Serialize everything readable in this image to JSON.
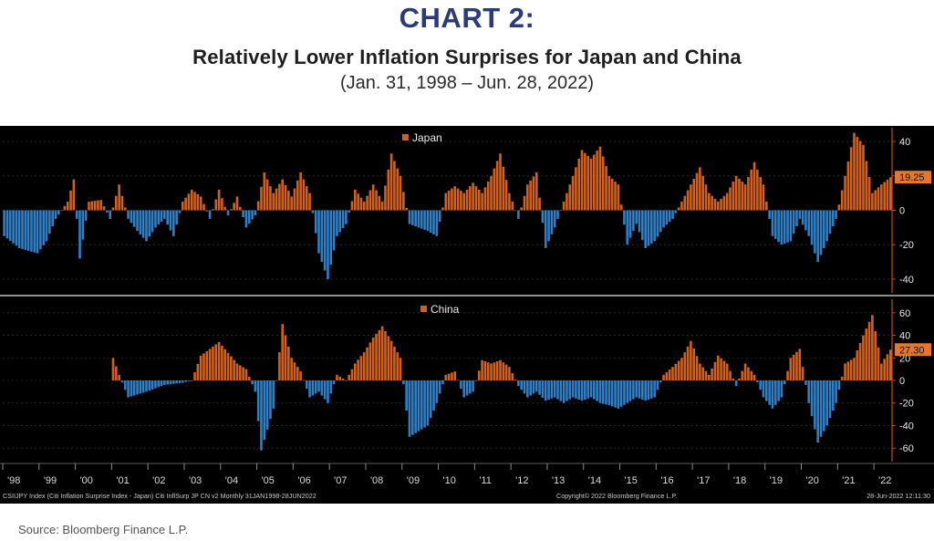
{
  "header": {
    "label": "CHART 2:",
    "title": "Relatively Lower Inflation Surprises for Japan and China",
    "subtitle": "(Jan. 31, 1998 – Jun. 28, 2022)"
  },
  "source": "Source: Bloomberg Finance L.P.",
  "footer": {
    "left": "CSIIJPY Index (Citi Inflation Surprise Index - Japan) Citi InflSurp JP CN v2  Monthly 31JAN1998-28JUN2022",
    "center": "Copyright© 2022 Bloomberg Finance L.P.",
    "right": "28-Jun-2022 12:11:30"
  },
  "colors": {
    "positive": "#d2601a",
    "negative": "#2f7fc6",
    "background": "#000000",
    "axis": "#d0461e",
    "last_value_tag": "#e8752a"
  },
  "chart_data": {
    "type": "bar",
    "x_range": [
      "1998-01",
      "2022-06"
    ],
    "x_tick_labels": [
      "'98",
      "'99",
      "'00",
      "'01",
      "'02",
      "'03",
      "'04",
      "'05",
      "'06",
      "'07",
      "'08",
      "'09",
      "'10",
      "'11",
      "'12",
      "'13",
      "'14",
      "'15",
      "'16",
      "'17",
      "'18",
      "'19",
      "'20",
      "'21",
      "'22"
    ],
    "panels": [
      {
        "series_name": "Japan",
        "ylim": [
          -48,
          48
        ],
        "yticks": [
          40,
          20,
          0,
          -20,
          -40
        ],
        "last_value": "19.25",
        "keypoints": [
          [
            "1998-01",
            -15
          ],
          [
            "1998-06",
            -22
          ],
          [
            "1998-12",
            -25
          ],
          [
            "1999-03",
            -18
          ],
          [
            "1999-06",
            -5
          ],
          [
            "1999-10",
            5
          ],
          [
            "1999-12",
            18
          ],
          [
            "2000-02",
            -28
          ],
          [
            "2000-05",
            5
          ],
          [
            "2000-09",
            6
          ],
          [
            "2000-12",
            -5
          ],
          [
            "2001-03",
            15
          ],
          [
            "2001-06",
            -5
          ],
          [
            "2001-09",
            -12
          ],
          [
            "2001-12",
            -18
          ],
          [
            "2002-03",
            -10
          ],
          [
            "2002-06",
            -5
          ],
          [
            "2002-09",
            -15
          ],
          [
            "2002-12",
            5
          ],
          [
            "2003-03",
            12
          ],
          [
            "2003-06",
            8
          ],
          [
            "2003-09",
            -5
          ],
          [
            "2003-12",
            12
          ],
          [
            "2004-03",
            -3
          ],
          [
            "2004-06",
            8
          ],
          [
            "2004-09",
            -10
          ],
          [
            "2004-12",
            -3
          ],
          [
            "2005-03",
            22
          ],
          [
            "2005-06",
            10
          ],
          [
            "2005-09",
            18
          ],
          [
            "2005-12",
            8
          ],
          [
            "2006-03",
            22
          ],
          [
            "2006-06",
            10
          ],
          [
            "2006-09",
            -25
          ],
          [
            "2006-12",
            -40
          ],
          [
            "2007-03",
            -15
          ],
          [
            "2007-06",
            -8
          ],
          [
            "2007-09",
            12
          ],
          [
            "2007-12",
            5
          ],
          [
            "2008-03",
            15
          ],
          [
            "2008-06",
            5
          ],
          [
            "2008-09",
            33
          ],
          [
            "2008-12",
            20
          ],
          [
            "2009-03",
            -8
          ],
          [
            "2009-06",
            -10
          ],
          [
            "2009-09",
            -12
          ],
          [
            "2009-12",
            -15
          ],
          [
            "2010-03",
            10
          ],
          [
            "2010-06",
            14
          ],
          [
            "2010-09",
            10
          ],
          [
            "2010-12",
            16
          ],
          [
            "2011-03",
            10
          ],
          [
            "2011-06",
            20
          ],
          [
            "2011-09",
            33
          ],
          [
            "2011-12",
            10
          ],
          [
            "2012-03",
            -5
          ],
          [
            "2012-06",
            15
          ],
          [
            "2012-09",
            22
          ],
          [
            "2012-12",
            -22
          ],
          [
            "2013-03",
            -10
          ],
          [
            "2013-06",
            5
          ],
          [
            "2013-09",
            20
          ],
          [
            "2013-12",
            35
          ],
          [
            "2014-03",
            30
          ],
          [
            "2014-06",
            37
          ],
          [
            "2014-09",
            20
          ],
          [
            "2014-12",
            15
          ],
          [
            "2015-03",
            -20
          ],
          [
            "2015-06",
            -8
          ],
          [
            "2015-09",
            -22
          ],
          [
            "2015-12",
            -18
          ],
          [
            "2016-03",
            -10
          ],
          [
            "2016-06",
            -5
          ],
          [
            "2016-09",
            5
          ],
          [
            "2016-12",
            15
          ],
          [
            "2017-03",
            25
          ],
          [
            "2017-06",
            10
          ],
          [
            "2017-09",
            5
          ],
          [
            "2017-12",
            10
          ],
          [
            "2018-03",
            20
          ],
          [
            "2018-06",
            15
          ],
          [
            "2018-09",
            28
          ],
          [
            "2018-12",
            15
          ],
          [
            "2019-03",
            -15
          ],
          [
            "2019-06",
            -20
          ],
          [
            "2019-09",
            -18
          ],
          [
            "2019-12",
            -5
          ],
          [
            "2020-03",
            -15
          ],
          [
            "2020-06",
            -30
          ],
          [
            "2020-09",
            -18
          ],
          [
            "2020-12",
            -5
          ],
          [
            "2021-03",
            20
          ],
          [
            "2021-06",
            45
          ],
          [
            "2021-09",
            38
          ],
          [
            "2021-12",
            10
          ],
          [
            "2022-03",
            15
          ],
          [
            "2022-06",
            19.25
          ]
        ]
      },
      {
        "series_name": "China",
        "ylim": [
          -72,
          72
        ],
        "yticks": [
          60,
          40,
          20,
          0,
          -20,
          -40,
          -60
        ],
        "last_value": "27.30",
        "keypoints": [
          [
            "2001-01",
            20
          ],
          [
            "2001-03",
            5
          ],
          [
            "2001-06",
            -15
          ],
          [
            "2001-12",
            -10
          ],
          [
            "2002-06",
            -4
          ],
          [
            "2002-12",
            -2
          ],
          [
            "2003-03",
            0
          ],
          [
            "2003-06",
            22
          ],
          [
            "2003-12",
            34
          ],
          [
            "2004-06",
            15
          ],
          [
            "2004-09",
            10
          ],
          [
            "2004-12",
            -10
          ],
          [
            "2005-02",
            -62
          ],
          [
            "2005-06",
            -25
          ],
          [
            "2005-09",
            50
          ],
          [
            "2005-12",
            20
          ],
          [
            "2006-03",
            8
          ],
          [
            "2006-06",
            -15
          ],
          [
            "2006-09",
            -10
          ],
          [
            "2006-12",
            -20
          ],
          [
            "2007-03",
            5
          ],
          [
            "2007-06",
            0
          ],
          [
            "2007-09",
            15
          ],
          [
            "2007-12",
            25
          ],
          [
            "2008-03",
            38
          ],
          [
            "2008-06",
            48
          ],
          [
            "2008-09",
            35
          ],
          [
            "2008-12",
            20
          ],
          [
            "2009-03",
            -50
          ],
          [
            "2009-06",
            -45
          ],
          [
            "2009-09",
            -40
          ],
          [
            "2009-12",
            -20
          ],
          [
            "2010-03",
            5
          ],
          [
            "2010-06",
            8
          ],
          [
            "2010-09",
            -15
          ],
          [
            "2010-12",
            -10
          ],
          [
            "2011-03",
            18
          ],
          [
            "2011-06",
            15
          ],
          [
            "2011-09",
            18
          ],
          [
            "2011-12",
            12
          ],
          [
            "2012-03",
            -5
          ],
          [
            "2012-06",
            -15
          ],
          [
            "2012-09",
            -10
          ],
          [
            "2012-12",
            -18
          ],
          [
            "2013-03",
            -15
          ],
          [
            "2013-06",
            -20
          ],
          [
            "2013-09",
            -15
          ],
          [
            "2013-12",
            -18
          ],
          [
            "2014-03",
            -15
          ],
          [
            "2014-06",
            -20
          ],
          [
            "2014-09",
            -22
          ],
          [
            "2014-12",
            -25
          ],
          [
            "2015-03",
            -20
          ],
          [
            "2015-06",
            -15
          ],
          [
            "2015-09",
            -18
          ],
          [
            "2015-12",
            -15
          ],
          [
            "2016-03",
            5
          ],
          [
            "2016-06",
            12
          ],
          [
            "2016-09",
            20
          ],
          [
            "2016-12",
            35
          ],
          [
            "2017-03",
            15
          ],
          [
            "2017-06",
            5
          ],
          [
            "2017-09",
            22
          ],
          [
            "2017-12",
            15
          ],
          [
            "2018-03",
            -5
          ],
          [
            "2018-06",
            15
          ],
          [
            "2018-09",
            5
          ],
          [
            "2018-12",
            -15
          ],
          [
            "2019-03",
            -25
          ],
          [
            "2019-06",
            -15
          ],
          [
            "2019-09",
            20
          ],
          [
            "2019-12",
            28
          ],
          [
            "2020-03",
            -20
          ],
          [
            "2020-06",
            -55
          ],
          [
            "2020-09",
            -40
          ],
          [
            "2020-12",
            -20
          ],
          [
            "2021-03",
            15
          ],
          [
            "2021-06",
            20
          ],
          [
            "2021-09",
            40
          ],
          [
            "2021-12",
            58
          ],
          [
            "2022-03",
            15
          ],
          [
            "2022-06",
            27.3
          ]
        ]
      }
    ]
  }
}
